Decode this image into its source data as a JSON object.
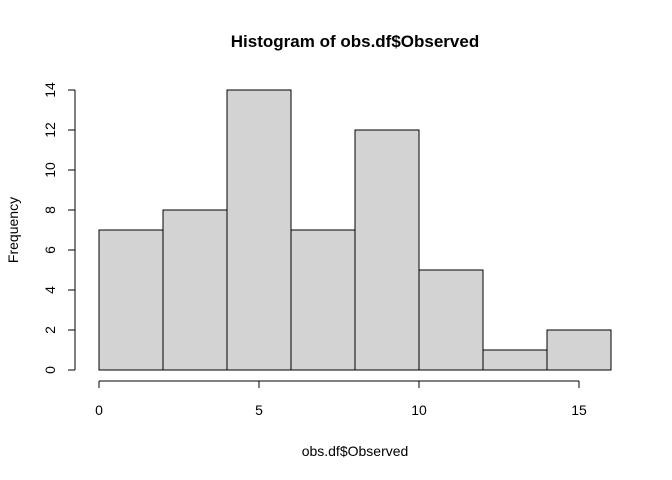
{
  "chart_data": {
    "type": "bar",
    "title": "Histogram of obs.df$Observed",
    "xlabel": "obs.df$Observed",
    "ylabel": "Frequency",
    "bins": [
      {
        "start": 0,
        "end": 2,
        "count": 7
      },
      {
        "start": 2,
        "end": 4,
        "count": 8
      },
      {
        "start": 4,
        "end": 6,
        "count": 14
      },
      {
        "start": 6,
        "end": 8,
        "count": 7
      },
      {
        "start": 8,
        "end": 10,
        "count": 12
      },
      {
        "start": 10,
        "end": 12,
        "count": 5
      },
      {
        "start": 12,
        "end": 14,
        "count": 1
      },
      {
        "start": 14,
        "end": 16,
        "count": 2
      }
    ],
    "xlim": [
      0,
      16
    ],
    "ylim": [
      0,
      14
    ],
    "xticks": [
      0,
      5,
      10,
      15
    ],
    "xtick_labels": [
      "0",
      "5",
      "10",
      "15"
    ],
    "yticks": [
      0,
      2,
      4,
      6,
      8,
      10,
      12,
      14
    ],
    "ytick_labels": [
      "0",
      "2",
      "4",
      "6",
      "8",
      "10",
      "12",
      "14"
    ],
    "grid": false,
    "legend": "none",
    "bar_color": "#d3d3d3",
    "edge_color": "#000000"
  }
}
